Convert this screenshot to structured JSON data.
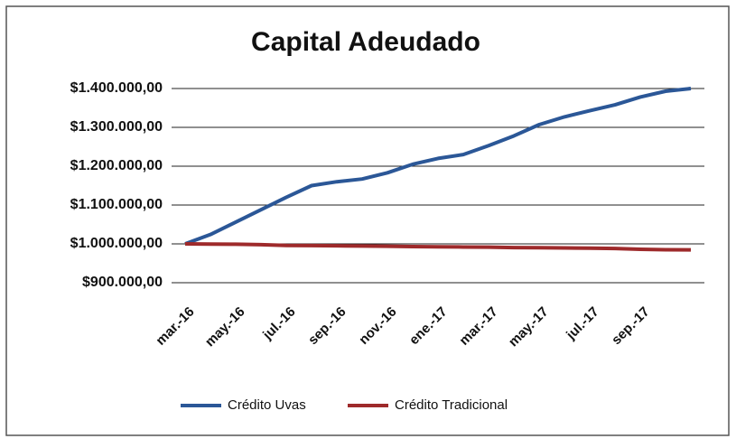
{
  "chart_data": {
    "type": "line",
    "title": "Capital Adeudado",
    "categories": [
      "mar.-16",
      null,
      "may.-16",
      null,
      "jul.-16",
      null,
      "sep.-16",
      null,
      "nov.-16",
      null,
      "ene.-17",
      null,
      "mar.-17",
      null,
      "may.-17",
      null,
      "jul.-17",
      null,
      "sep.-17",
      null,
      null
    ],
    "series": [
      {
        "name": "Crédito Uvas",
        "color": "#2b5797",
        "values": [
          1000000,
          1024000,
          1056000,
          1088000,
          1120000,
          1150000,
          1160000,
          1167000,
          1183000,
          1205000,
          1220000,
          1230000,
          1253000,
          1278000,
          1307000,
          1327000,
          1343000,
          1358000,
          1378000,
          1393000,
          1400000
        ]
      },
      {
        "name": "Crédito Tradicional",
        "color": "#9e2a2b",
        "values": [
          1000000,
          999500,
          999000,
          998000,
          996000,
          995500,
          995000,
          994500,
          994000,
          993000,
          992500,
          992000,
          991500,
          990500,
          990000,
          989500,
          989000,
          988000,
          986000,
          985000,
          984500
        ]
      }
    ],
    "ylim": [
      900000,
      1400000
    ],
    "yticks": [
      {
        "value": 900000,
        "label": "$900.000,00"
      },
      {
        "value": 1000000,
        "label": "$1.000.000,00"
      },
      {
        "value": 1100000,
        "label": "$1.100.000,00"
      },
      {
        "value": 1200000,
        "label": "$1.200.000,00"
      },
      {
        "value": 1300000,
        "label": "$1.300.000,00"
      },
      {
        "value": 1400000,
        "label": "$1.400.000,00"
      }
    ],
    "grid": true,
    "legend": "bottom"
  }
}
